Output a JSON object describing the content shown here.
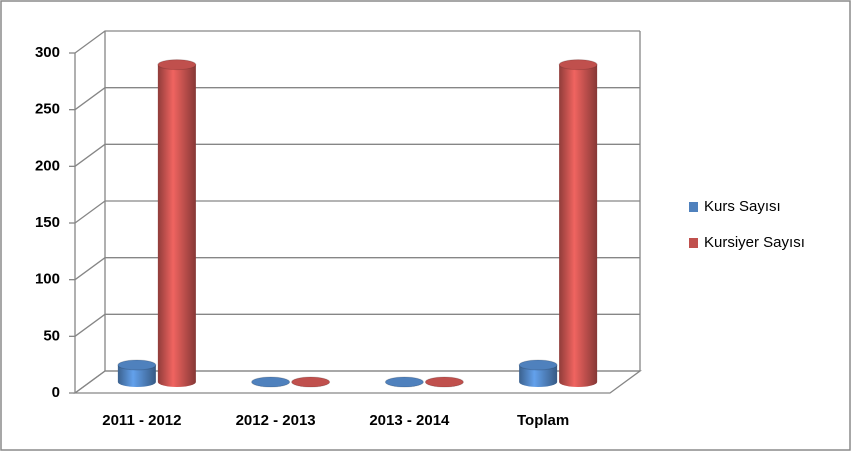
{
  "chart_data": {
    "type": "bar",
    "categories": [
      "2011 - 2012",
      "2012 - 2013",
      "2013 - 2014",
      "Toplam"
    ],
    "series": [
      {
        "name": "Kurs Sayısı",
        "color": "#4f81bd",
        "values": [
          15,
          0,
          0,
          15
        ]
      },
      {
        "name": "Kursiyer Sayısı",
        "color": "#c0504d",
        "values": [
          280,
          0,
          0,
          280
        ]
      }
    ],
    "ylim": [
      0,
      300
    ],
    "yticks": [
      0,
      50,
      100,
      150,
      200,
      250,
      300
    ],
    "grid": true,
    "legend": "right"
  }
}
